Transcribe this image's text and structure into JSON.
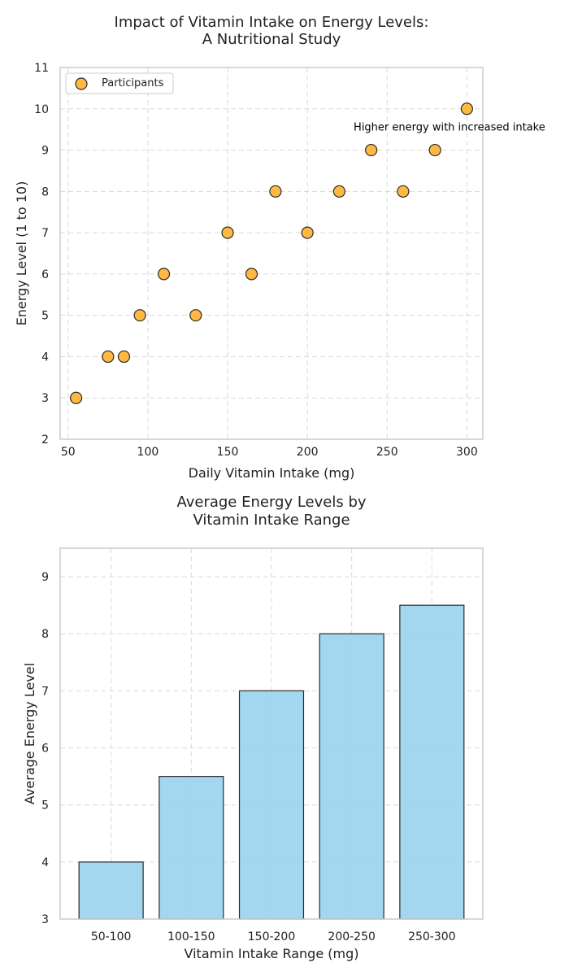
{
  "chart_data": [
    {
      "type": "scatter",
      "title": "Impact of Vitamin Intake on Energy Levels:\nA Nutritional Study",
      "xlabel": "Daily Vitamin Intake (mg)",
      "ylabel": "Energy Level (1 to 10)",
      "xlim": [
        45,
        310
      ],
      "ylim": [
        2,
        11
      ],
      "xticks": [
        50,
        100,
        150,
        200,
        250,
        300
      ],
      "yticks": [
        2,
        3,
        4,
        5,
        6,
        7,
        8,
        9,
        10,
        11
      ],
      "grid": true,
      "legend": "upper-left",
      "series": [
        {
          "name": "Participants",
          "color": "#ffb12e",
          "x": [
            55,
            75,
            85,
            95,
            110,
            130,
            150,
            165,
            180,
            200,
            220,
            240,
            260,
            280,
            300
          ],
          "y": [
            3,
            4,
            4,
            5,
            6,
            5,
            7,
            6,
            8,
            7,
            8,
            9,
            8,
            9,
            10
          ]
        }
      ],
      "annotations": [
        {
          "text": "Higher energy with increased intake",
          "x": 229,
          "y": 9.55
        }
      ]
    },
    {
      "type": "bar",
      "title": "Average Energy Levels by\nVitamin Intake Range",
      "xlabel": "Vitamin Intake Range (mg)",
      "ylabel": "Average Energy Level",
      "categories": [
        "50-100",
        "100-150",
        "150-200",
        "200-250",
        "250-300"
      ],
      "values": [
        4.0,
        5.5,
        7.0,
        8.0,
        8.5
      ],
      "ylim": [
        3,
        9.5
      ],
      "yticks": [
        3,
        4,
        5,
        6,
        7,
        8,
        9
      ],
      "grid": true,
      "color": "#9dd5ee"
    }
  ]
}
